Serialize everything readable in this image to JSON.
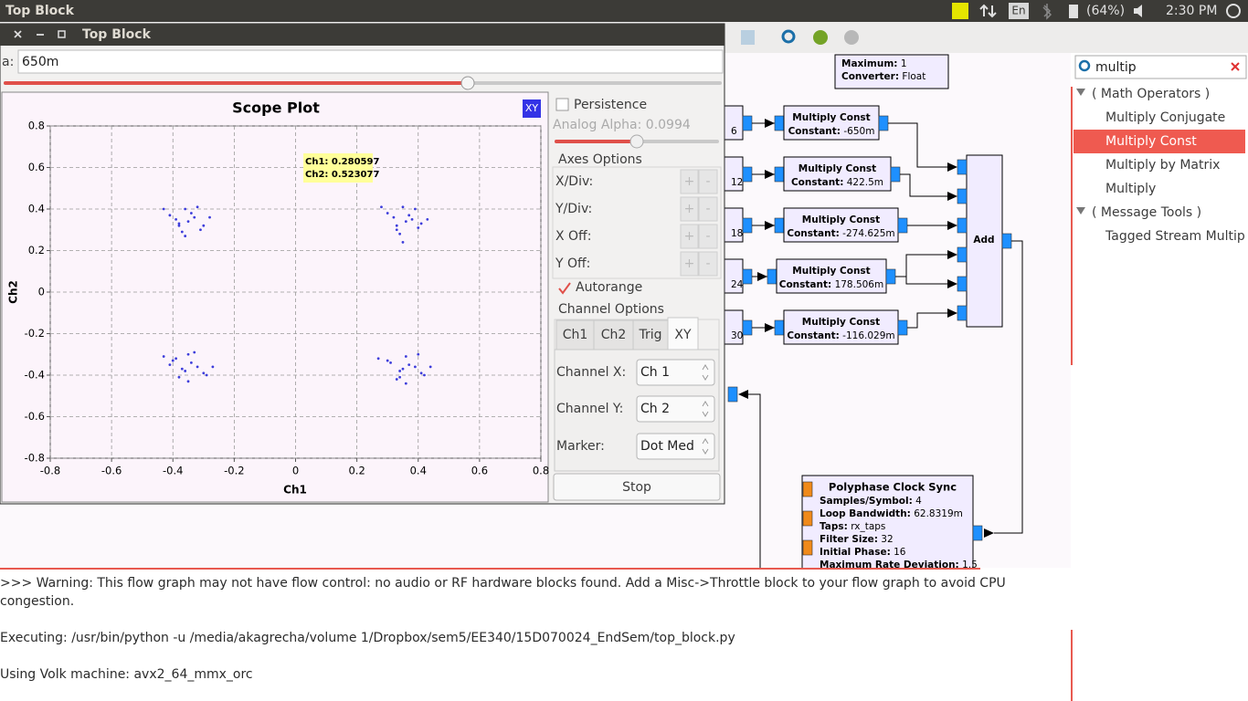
{
  "topbar": {
    "title": "Top Block",
    "lang": "En",
    "battery": "(64%)",
    "clock": "2:30 PM"
  },
  "flowgraph": {
    "info_block": [
      {
        "label": "Maximum:",
        "value": "1"
      },
      {
        "label": "Converter:",
        "value": "Float"
      }
    ],
    "partial_labels": [
      "6",
      "12",
      "18",
      "24",
      "30"
    ],
    "multiply_blocks": [
      {
        "title": "Multiply Const",
        "label": "Constant:",
        "value": "-650m"
      },
      {
        "title": "Multiply Const",
        "label": "Constant:",
        "value": "422.5m"
      },
      {
        "title": "Multiply Const",
        "label": "Constant:",
        "value": "-274.625m"
      },
      {
        "title": "Multiply Const",
        "label": "Constant:",
        "value": "178.506m"
      },
      {
        "title": "Multiply Const",
        "label": "Constant:",
        "value": "-116.029m"
      }
    ],
    "add_block": "Add",
    "polyphase": {
      "title": "Polyphase Clock Sync",
      "params": [
        {
          "label": "Samples/Symbol:",
          "value": "4"
        },
        {
          "label": "Loop Bandwidth:",
          "value": "62.8319m"
        },
        {
          "label": "Taps:",
          "value": "rx_taps"
        },
        {
          "label": "Filter Size:",
          "value": "32"
        },
        {
          "label": "Initial Phase:",
          "value": "16"
        },
        {
          "label": "Maximum Rate Deviation:",
          "value": "1.5"
        }
      ]
    }
  },
  "console": {
    "lines": [
      ">>> Warning: This flow graph may not have flow control: no audio or RF hardware blocks found. Add a Misc->Throttle block to your flow graph to avoid CPU",
      "congestion.",
      "Executing: /usr/bin/python -u /media/akagrecha/volume 1/Dropbox/sem5/EE340/15D070024_EndSem/top_block.py",
      "Using Volk machine: avx2_64_mmx_orc"
    ]
  },
  "block_search": {
    "query": "multip",
    "groups": [
      {
        "name": "( Math Operators )",
        "items": [
          "Multiply Conjugate",
          "Multiply Const",
          "Multiply by Matrix",
          "Multiply"
        ]
      },
      {
        "name": "( Message Tools )",
        "items": [
          "Tagged Stream Multip"
        ]
      }
    ]
  },
  "scope_window": {
    "title": "Top Block",
    "param_label": "a:",
    "param_value": "650m",
    "xy_button": "XY",
    "persistence": "Persistence",
    "analog_alpha": "Analog Alpha: 0.0994",
    "axes_options": "Axes Options",
    "axes_rows": [
      "X/Div:",
      "Y/Div:",
      "X Off:",
      "Y Off:"
    ],
    "plus": "+",
    "minus": "-",
    "autorange": "Autorange",
    "channel_options": "Channel Options",
    "tabs": [
      "Ch1",
      "Ch2",
      "Trig",
      "XY"
    ],
    "channel_rows": [
      {
        "label": "Channel X:",
        "value": "Ch 1"
      },
      {
        "label": "Channel Y:",
        "value": "Ch 2"
      },
      {
        "label": "Marker:",
        "value": "Dot Med"
      }
    ],
    "stop": "Stop"
  },
  "chart_data": {
    "type": "scatter",
    "title": "Scope Plot",
    "xlabel": "Ch1",
    "ylabel": "Ch2",
    "annotations": [
      "Ch1: 0.280597",
      "Ch2: 0.523077"
    ],
    "xlim": [
      -0.8,
      0.8
    ],
    "ylim": [
      -0.8,
      0.8
    ],
    "xticks": [
      -0.8,
      -0.6,
      -0.4,
      -0.2,
      0,
      0.2,
      0.4,
      0.6,
      0.8
    ],
    "yticks": [
      -0.8,
      -0.6,
      -0.4,
      -0.2,
      0,
      0.2,
      0.4,
      0.6,
      0.8
    ],
    "grid": true,
    "x": [
      -0.41,
      -0.38,
      -0.36,
      -0.33,
      -0.3,
      -0.37,
      -0.34,
      -0.39,
      -0.32,
      -0.35,
      -0.43,
      -0.28,
      -0.36,
      -0.31,
      -0.38,
      0.3,
      0.33,
      0.35,
      0.38,
      0.41,
      0.34,
      0.37,
      0.32,
      0.39,
      0.36,
      0.28,
      0.43,
      0.35,
      0.4,
      0.33,
      -0.4,
      -0.37,
      -0.35,
      -0.32,
      -0.29,
      -0.38,
      -0.34,
      -0.41,
      -0.33,
      -0.36,
      -0.43,
      -0.27,
      -0.35,
      -0.3,
      -0.39,
      0.31,
      0.34,
      0.36,
      0.39,
      0.42,
      0.33,
      0.37,
      0.3,
      0.4,
      0.35,
      0.27,
      0.44,
      0.36,
      0.41,
      0.34
    ],
    "series": [
      {
        "color": "#3d3ddb",
        "values": [
          0.37,
          0.33,
          0.4,
          0.36,
          0.32,
          0.29,
          0.38,
          0.35,
          0.41,
          0.34,
          0.4,
          0.36,
          0.27,
          0.3,
          0.32,
          0.38,
          0.32,
          0.41,
          0.35,
          0.33,
          0.28,
          0.37,
          0.36,
          0.4,
          0.34,
          0.41,
          0.35,
          0.24,
          0.31,
          0.3,
          -0.33,
          -0.37,
          -0.3,
          -0.36,
          -0.4,
          -0.41,
          -0.34,
          -0.35,
          -0.29,
          -0.38,
          -0.31,
          -0.36,
          -0.43,
          -0.39,
          -0.32,
          -0.34,
          -0.38,
          -0.31,
          -0.36,
          -0.4,
          -0.42,
          -0.35,
          -0.33,
          -0.3,
          -0.37,
          -0.32,
          -0.36,
          -0.44,
          -0.39,
          -0.41
        ]
      }
    ]
  }
}
